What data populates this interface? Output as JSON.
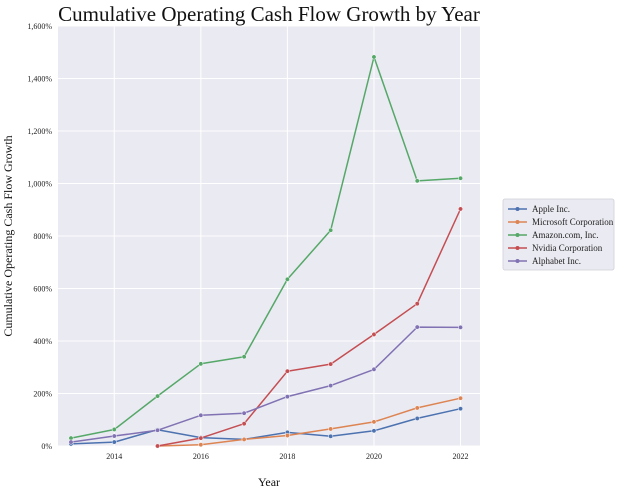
{
  "chart_data": {
    "type": "line",
    "title": "Cumulative Operating Cash Flow Growth by Year",
    "xlabel": "Year",
    "ylabel": "Cumulative Operating Cash Flow Growth",
    "xlim": [
      2012.7,
      2022.45
    ],
    "ylim": [
      0,
      1600
    ],
    "xticks": [
      2014,
      2016,
      2018,
      2020,
      2022
    ],
    "yticks": [
      0,
      200,
      400,
      600,
      800,
      1000,
      1200,
      1400,
      1600
    ],
    "ytick_labels": [
      "0%",
      "200%",
      "400%",
      "600%",
      "800%",
      "1,000%",
      "1,200%",
      "1,400%",
      "1,600%"
    ],
    "grid": true,
    "legend_position": "right",
    "background": "#eaeaf2",
    "series": [
      {
        "name": "Apple Inc.",
        "color": "#4c72b0",
        "x": [
          2013,
          2014,
          2015,
          2016,
          2017,
          2018,
          2019,
          2020,
          2021,
          2022
        ],
        "values": [
          8,
          15,
          62,
          32,
          25,
          52,
          37,
          58,
          105,
          142
        ]
      },
      {
        "name": "Microsoft Corporation",
        "color": "#dd8452",
        "x": [
          2015,
          2016,
          2017,
          2018,
          2019,
          2020,
          2021,
          2022
        ],
        "values": [
          0,
          5,
          25,
          40,
          65,
          92,
          145,
          182
        ]
      },
      {
        "name": "Amazon.com, Inc.",
        "color": "#55a868",
        "x": [
          2013,
          2014,
          2015,
          2016,
          2017,
          2018,
          2019,
          2020,
          2021,
          2022
        ],
        "values": [
          30,
          63,
          190,
          313,
          340,
          635,
          822,
          1482,
          1010,
          1020
        ]
      },
      {
        "name": "Nvidia Corporation",
        "color": "#c44e52",
        "x": [
          2015,
          2016,
          2017,
          2018,
          2019,
          2020,
          2021,
          2022
        ],
        "values": [
          0,
          30,
          85,
          285,
          312,
          425,
          542,
          903
        ]
      },
      {
        "name": "Alphabet Inc.",
        "color": "#8172b3",
        "x": [
          2013,
          2014,
          2015,
          2016,
          2017,
          2018,
          2019,
          2020,
          2021,
          2022
        ],
        "values": [
          15,
          38,
          60,
          117,
          125,
          188,
          230,
          292,
          453,
          452
        ]
      }
    ]
  }
}
